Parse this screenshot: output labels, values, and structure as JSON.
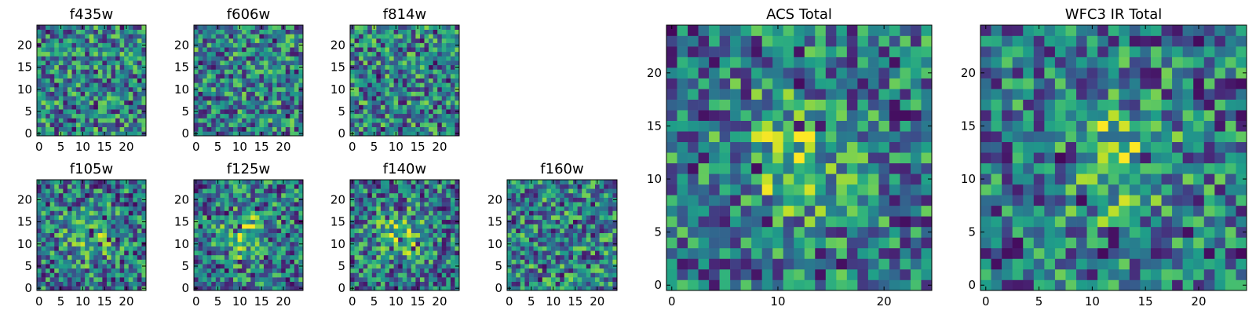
{
  "figure": {
    "colormap": "viridis",
    "colors": {
      "background": "#ffffff",
      "frame": "#000000"
    }
  },
  "chart_data": [
    {
      "type": "heatmap",
      "title": "f435w",
      "grid": [
        25,
        25
      ],
      "xlim": [
        0,
        24
      ],
      "ylim": [
        0,
        24
      ],
      "xticks": [
        0,
        5,
        10,
        15,
        20
      ],
      "yticks": [
        0,
        5,
        10,
        15,
        20
      ],
      "pattern": "noise",
      "values": []
    },
    {
      "type": "heatmap",
      "title": "f606w",
      "grid": [
        25,
        25
      ],
      "xlim": [
        0,
        24
      ],
      "ylim": [
        0,
        24
      ],
      "xticks": [
        0,
        5,
        10,
        15,
        20
      ],
      "yticks": [
        0,
        5,
        10,
        15,
        20
      ],
      "pattern": "noise",
      "values": []
    },
    {
      "type": "heatmap",
      "title": "f814w",
      "grid": [
        25,
        25
      ],
      "xlim": [
        0,
        24
      ],
      "ylim": [
        0,
        24
      ],
      "xticks": [
        0,
        5,
        10,
        15,
        20
      ],
      "yticks": [
        0,
        5,
        10,
        15,
        20
      ],
      "pattern": "noise",
      "values": []
    },
    {
      "type": "heatmap",
      "title": "f105w",
      "grid": [
        25,
        25
      ],
      "xlim": [
        0,
        24
      ],
      "ylim": [
        0,
        24
      ],
      "xticks": [
        0,
        5,
        10,
        15,
        20
      ],
      "yticks": [
        0,
        5,
        10,
        15,
        20
      ],
      "pattern": "central source",
      "values": []
    },
    {
      "type": "heatmap",
      "title": "f125w",
      "grid": [
        25,
        25
      ],
      "xlim": [
        0,
        24
      ],
      "ylim": [
        0,
        24
      ],
      "xticks": [
        0,
        5,
        10,
        15,
        20
      ],
      "yticks": [
        0,
        5,
        10,
        15,
        20
      ],
      "pattern": "central source",
      "values": []
    },
    {
      "type": "heatmap",
      "title": "f140w",
      "grid": [
        25,
        25
      ],
      "xlim": [
        0,
        24
      ],
      "ylim": [
        0,
        24
      ],
      "xticks": [
        0,
        5,
        10,
        15,
        20
      ],
      "yticks": [
        0,
        5,
        10,
        15,
        20
      ],
      "pattern": "central source",
      "values": []
    },
    {
      "type": "heatmap",
      "title": "f160w",
      "grid": [
        25,
        25
      ],
      "xlim": [
        0,
        24
      ],
      "ylim": [
        0,
        24
      ],
      "xticks": [
        0,
        5,
        10,
        15,
        20
      ],
      "yticks": [
        0,
        5,
        10,
        15,
        20
      ],
      "pattern": "noise",
      "values": []
    },
    {
      "type": "heatmap",
      "title": "ACS Total",
      "grid": [
        25,
        25
      ],
      "xlim": [
        0,
        24
      ],
      "ylim": [
        0,
        24
      ],
      "xticks": [
        0,
        10,
        20
      ],
      "yticks": [
        0,
        5,
        10,
        15,
        20
      ],
      "pattern": "central source",
      "values": []
    },
    {
      "type": "heatmap",
      "title": "WFC3 IR Total",
      "grid": [
        25,
        25
      ],
      "xlim": [
        0,
        24
      ],
      "ylim": [
        0,
        24
      ],
      "xticks": [
        0,
        5,
        10,
        15,
        20
      ],
      "yticks": [
        0,
        5,
        10,
        15,
        20
      ],
      "pattern": "central source",
      "values": []
    }
  ]
}
